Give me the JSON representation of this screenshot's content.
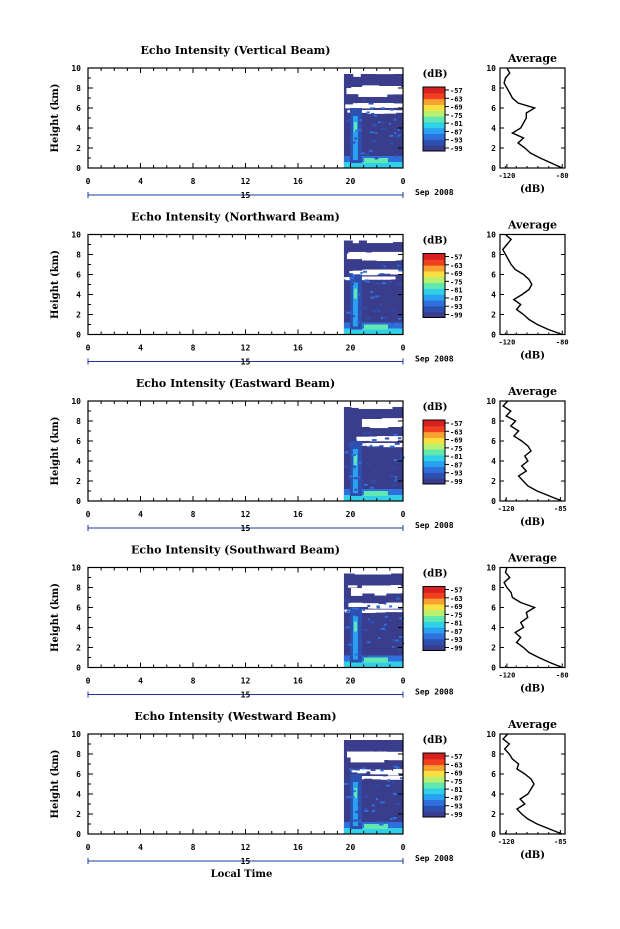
{
  "colors": {
    "scale": [
      "#3a3d8c",
      "#2d4fb0",
      "#2f6fdc",
      "#2aa0f0",
      "#30d0e8",
      "#60e8b0",
      "#b8f070",
      "#f8e040",
      "#f8a030",
      "#f04020",
      "#d82020"
    ],
    "background_fill": "#3a3d8c",
    "axis": "#000000"
  },
  "chart_data": [
    {
      "type": "heatmap",
      "title": "Echo Intensity (Vertical Beam)",
      "ylabel": "Height (km)",
      "xlabel": "",
      "x_ticks": [
        "0",
        "4",
        "8",
        "12",
        "16",
        "20",
        "0"
      ],
      "y_ticks": [
        "0",
        "2",
        "4",
        "6",
        "8",
        "10"
      ],
      "ylim": [
        0,
        10
      ],
      "date_day": "15",
      "date_month": "Sep 2008",
      "colorbar_label": "(dB)",
      "colorbar_ticks": [
        "-57",
        "-63",
        "-69",
        "-75",
        "-81",
        "-87",
        "-93",
        "-99"
      ],
      "data_window_hours": [
        19.5,
        24
      ],
      "profile": {
        "title": "Average",
        "xlabel": "(dB)",
        "x_ticks": [
          "-120",
          "-80"
        ],
        "xlim": [
          -125,
          -78
        ],
        "y_ticks": [
          "0",
          "2",
          "4",
          "6",
          "8",
          "10"
        ],
        "heights": [
          0,
          0.5,
          1,
          1.5,
          2,
          2.5,
          3,
          3.5,
          4,
          4.5,
          5,
          5.5,
          6,
          6.5,
          7,
          7.5,
          8,
          8.5,
          9,
          9.5,
          10
        ],
        "values": [
          -80,
          -88,
          -96,
          -103,
          -107,
          -112,
          -108,
          -116,
          -110,
          -108,
          -106,
          -106,
          -100,
          -112,
          -116,
          -118,
          -120,
          -122,
          -121,
          -118,
          -120
        ]
      }
    },
    {
      "type": "heatmap",
      "title": "Echo Intensity (Northward Beam)",
      "ylabel": "Height (km)",
      "xlabel": "",
      "x_ticks": [
        "0",
        "4",
        "8",
        "12",
        "16",
        "20",
        "0"
      ],
      "y_ticks": [
        "0",
        "2",
        "4",
        "6",
        "8",
        "10"
      ],
      "ylim": [
        0,
        10
      ],
      "date_day": "15",
      "date_month": "Sep 2008",
      "colorbar_label": "(dB)",
      "colorbar_ticks": [
        "-57",
        "-63",
        "-69",
        "-75",
        "-81",
        "-87",
        "-93",
        "-99"
      ],
      "data_window_hours": [
        19.5,
        24
      ],
      "profile": {
        "title": "Average",
        "xlabel": "(dB)",
        "x_ticks": [
          "-120",
          "-80"
        ],
        "xlim": [
          -125,
          -78
        ],
        "y_ticks": [
          "0",
          "2",
          "4",
          "6",
          "8",
          "10"
        ],
        "heights": [
          0,
          0.5,
          1,
          1.5,
          2,
          2.5,
          3,
          3.5,
          4,
          4.5,
          5,
          5.5,
          6,
          6.5,
          7,
          7.5,
          8,
          8.5,
          9,
          9.5,
          10
        ],
        "values": [
          -80,
          -90,
          -98,
          -104,
          -108,
          -113,
          -110,
          -115,
          -109,
          -104,
          -102,
          -104,
          -108,
          -114,
          -117,
          -119,
          -121,
          -123,
          -120,
          -117,
          -121
        ]
      }
    },
    {
      "type": "heatmap",
      "title": "Echo Intensity (Eastward Beam)",
      "ylabel": "Height (km)",
      "xlabel": "",
      "x_ticks": [
        "0",
        "4",
        "8",
        "12",
        "16",
        "20",
        "0"
      ],
      "y_ticks": [
        "0",
        "2",
        "4",
        "6",
        "8",
        "10"
      ],
      "ylim": [
        0,
        10
      ],
      "date_day": "15",
      "date_month": "Sep 2008",
      "colorbar_label": "(dB)",
      "colorbar_ticks": [
        "-57",
        "-63",
        "-69",
        "-75",
        "-81",
        "-87",
        "-93",
        "-99"
      ],
      "data_window_hours": [
        19.5,
        24
      ],
      "profile": {
        "title": "Average",
        "xlabel": "(dB)",
        "x_ticks": [
          "-120",
          "-85"
        ],
        "xlim": [
          -124,
          -82
        ],
        "y_ticks": [
          "0",
          "2",
          "4",
          "6",
          "8",
          "10"
        ],
        "heights": [
          0,
          0.5,
          1,
          1.5,
          2,
          2.5,
          3,
          3.5,
          4,
          4.5,
          5,
          5.5,
          6,
          6.5,
          7,
          7.5,
          8,
          8.5,
          9,
          9.5,
          10
        ],
        "values": [
          -84,
          -92,
          -100,
          -106,
          -109,
          -112,
          -107,
          -110,
          -106,
          -108,
          -104,
          -106,
          -110,
          -115,
          -112,
          -117,
          -114,
          -120,
          -117,
          -122,
          -119
        ]
      }
    },
    {
      "type": "heatmap",
      "title": "Echo Intensity (Southward Beam)",
      "ylabel": "Height (km)",
      "xlabel": "",
      "x_ticks": [
        "0",
        "4",
        "8",
        "12",
        "16",
        "20",
        "0"
      ],
      "y_ticks": [
        "0",
        "2",
        "4",
        "6",
        "8",
        "10"
      ],
      "ylim": [
        0,
        10
      ],
      "date_day": "15",
      "date_month": "Sep 2008",
      "colorbar_label": "(dB)",
      "colorbar_ticks": [
        "-57",
        "-63",
        "-69",
        "-75",
        "-81",
        "-87",
        "-93",
        "-99"
      ],
      "data_window_hours": [
        19.5,
        24
      ],
      "profile": {
        "title": "Average",
        "xlabel": "(dB)",
        "x_ticks": [
          "-120",
          "-80"
        ],
        "xlim": [
          -125,
          -78
        ],
        "y_ticks": [
          "0",
          "2",
          "4",
          "6",
          "8",
          "10"
        ],
        "heights": [
          0,
          0.5,
          1,
          1.5,
          2,
          2.5,
          3,
          3.5,
          4,
          4.5,
          5,
          5.5,
          6,
          6.5,
          7,
          7.5,
          8,
          8.5,
          9,
          9.5,
          10
        ],
        "values": [
          -80,
          -89,
          -97,
          -104,
          -108,
          -113,
          -110,
          -114,
          -108,
          -110,
          -105,
          -106,
          -100,
          -110,
          -116,
          -117,
          -120,
          -122,
          -118,
          -121,
          -120
        ]
      }
    },
    {
      "type": "heatmap",
      "title": "Echo Intensity (Westward Beam)",
      "ylabel": "Height (km)",
      "xlabel": "Local Time",
      "x_ticks": [
        "0",
        "4",
        "8",
        "12",
        "16",
        "20",
        "0"
      ],
      "y_ticks": [
        "0",
        "2",
        "4",
        "6",
        "8",
        "10"
      ],
      "ylim": [
        0,
        10
      ],
      "date_day": "15",
      "date_month": "Sep 2008",
      "colorbar_label": "(dB)",
      "colorbar_ticks": [
        "-57",
        "-63",
        "-69",
        "-75",
        "-81",
        "-87",
        "-93",
        "-99"
      ],
      "data_window_hours": [
        19.5,
        24
      ],
      "profile": {
        "title": "Average",
        "xlabel": "(dB)",
        "x_ticks": [
          "-120",
          "-85"
        ],
        "xlim": [
          -124,
          -82
        ],
        "y_ticks": [
          "0",
          "2",
          "4",
          "6",
          "8",
          "10"
        ],
        "heights": [
          0,
          0.5,
          1,
          1.5,
          2,
          2.5,
          3,
          3.5,
          4,
          4.5,
          5,
          5.5,
          6,
          6.5,
          7,
          7.5,
          8,
          8.5,
          9,
          9.5,
          10
        ],
        "values": [
          -84,
          -92,
          -100,
          -106,
          -110,
          -113,
          -108,
          -111,
          -106,
          -104,
          -102,
          -104,
          -108,
          -113,
          -112,
          -116,
          -118,
          -121,
          -118,
          -122,
          -119
        ]
      }
    }
  ]
}
